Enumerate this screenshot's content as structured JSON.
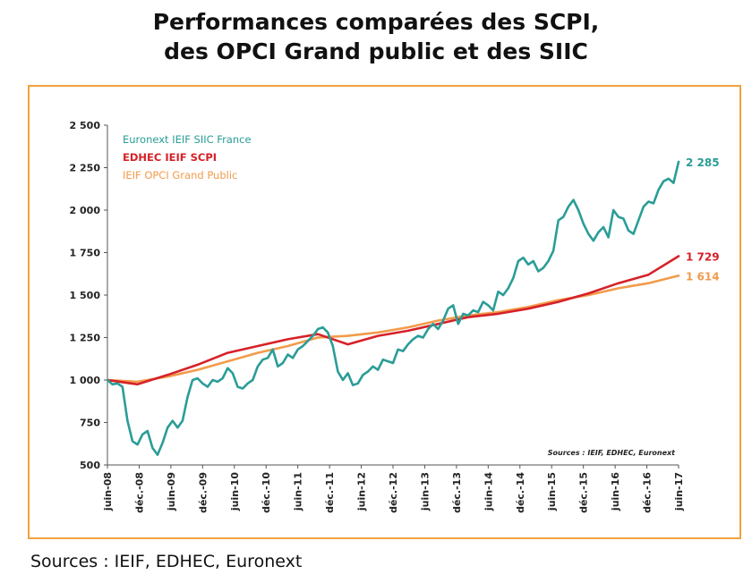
{
  "page": {
    "title_line1": "Performances comparées des SCPI,",
    "title_line2": "des OPCI Grand public et des SIIC",
    "bottom_sources": "Sources : IEIF, EDHEC, Euronext"
  },
  "chart_data": {
    "type": "line",
    "ylim": [
      500,
      2500
    ],
    "yticks": [
      500,
      750,
      1000,
      1250,
      1500,
      1750,
      2000,
      2250,
      2500
    ],
    "ytick_labels": [
      "500",
      "750",
      "1 000",
      "1 250",
      "1 500",
      "1 750",
      "2 000",
      "2 250",
      "2 500"
    ],
    "xticks": [
      "juin-08",
      "déc.-08",
      "juin-09",
      "déc.-09",
      "juin-10",
      "déc.-10",
      "juin-11",
      "déc.-11",
      "juin-12",
      "déc.-12",
      "juin-13",
      "déc.-13",
      "juin-14",
      "déc.-14",
      "juin-15",
      "déc.-15",
      "juin-16",
      "déc.-16",
      "juin-17"
    ],
    "source_note": "Sources : IEIF, EDHEC, Euronext",
    "legend_position": "top-left",
    "grid": false,
    "series": [
      {
        "name": "Euronext IEIF SIIC France",
        "color": "#2a9d97",
        "end_label": "2 285",
        "x": [
          0,
          1,
          2,
          3,
          4,
          5,
          6,
          7,
          8,
          9,
          10,
          11,
          12,
          13,
          14,
          15,
          16,
          17,
          18,
          19,
          20,
          21,
          22,
          23,
          24,
          25,
          26,
          27,
          28,
          29,
          30,
          31,
          32,
          33,
          34,
          35,
          36,
          37,
          38,
          39,
          40,
          41,
          42,
          43,
          44,
          45,
          46,
          47,
          48,
          49,
          50,
          51,
          52,
          53,
          54,
          55,
          56,
          57,
          58,
          59,
          60,
          61,
          62,
          63,
          64,
          65,
          66,
          67,
          68,
          69,
          70,
          71,
          72,
          73,
          74,
          75,
          76,
          77,
          78,
          79,
          80,
          81,
          82,
          83,
          84,
          85,
          86,
          87,
          88,
          89,
          90,
          91,
          92,
          93,
          94,
          95,
          96,
          97,
          98,
          99,
          100,
          101,
          102,
          103,
          104,
          105,
          106,
          107,
          108,
          109,
          110,
          111,
          112,
          113,
          114
        ],
        "y": [
          1000,
          975,
          980,
          960,
          760,
          640,
          620,
          680,
          700,
          600,
          560,
          630,
          720,
          760,
          720,
          760,
          900,
          1000,
          1010,
          980,
          960,
          1000,
          990,
          1010,
          1070,
          1040,
          960,
          950,
          980,
          1000,
          1080,
          1120,
          1130,
          1180,
          1080,
          1100,
          1150,
          1130,
          1180,
          1200,
          1230,
          1260,
          1300,
          1310,
          1280,
          1200,
          1050,
          1000,
          1040,
          970,
          980,
          1030,
          1050,
          1080,
          1060,
          1120,
          1110,
          1100,
          1180,
          1170,
          1210,
          1240,
          1260,
          1250,
          1300,
          1330,
          1300,
          1350,
          1420,
          1440,
          1330,
          1390,
          1380,
          1410,
          1400,
          1460,
          1440,
          1410,
          1520,
          1500,
          1540,
          1600,
          1700,
          1720,
          1680,
          1700,
          1640,
          1660,
          1700,
          1760,
          1940,
          1960,
          2020,
          2060,
          2000,
          1920,
          1860,
          1820,
          1870,
          1900,
          1840,
          2000,
          1960,
          1950,
          1880,
          1860,
          1940,
          2020,
          2050,
          2040,
          2120,
          2170,
          2185,
          2160,
          2285
        ]
      },
      {
        "name": "EDHEC IEIF SCPI",
        "color": "#d62128",
        "end_label": "1 729",
        "x": [
          0,
          6,
          12,
          18,
          24,
          30,
          36,
          42,
          48,
          54,
          60,
          66,
          72,
          78,
          84,
          90,
          96,
          102,
          108,
          114
        ],
        "y": [
          1000,
          975,
          1030,
          1090,
          1160,
          1200,
          1240,
          1270,
          1210,
          1260,
          1290,
          1330,
          1370,
          1390,
          1420,
          1460,
          1510,
          1570,
          1620,
          1729
        ]
      },
      {
        "name": "IEIF OPCI Grand Public",
        "color": "#f29b4b",
        "end_label": "1 614",
        "x": [
          0,
          6,
          12,
          18,
          24,
          30,
          36,
          42,
          48,
          54,
          60,
          66,
          72,
          78,
          84,
          90,
          96,
          102,
          108,
          114
        ],
        "y": [
          1000,
          990,
          1020,
          1060,
          1110,
          1160,
          1200,
          1250,
          1260,
          1280,
          1310,
          1350,
          1380,
          1400,
          1430,
          1470,
          1500,
          1540,
          1570,
          1614
        ]
      }
    ]
  }
}
